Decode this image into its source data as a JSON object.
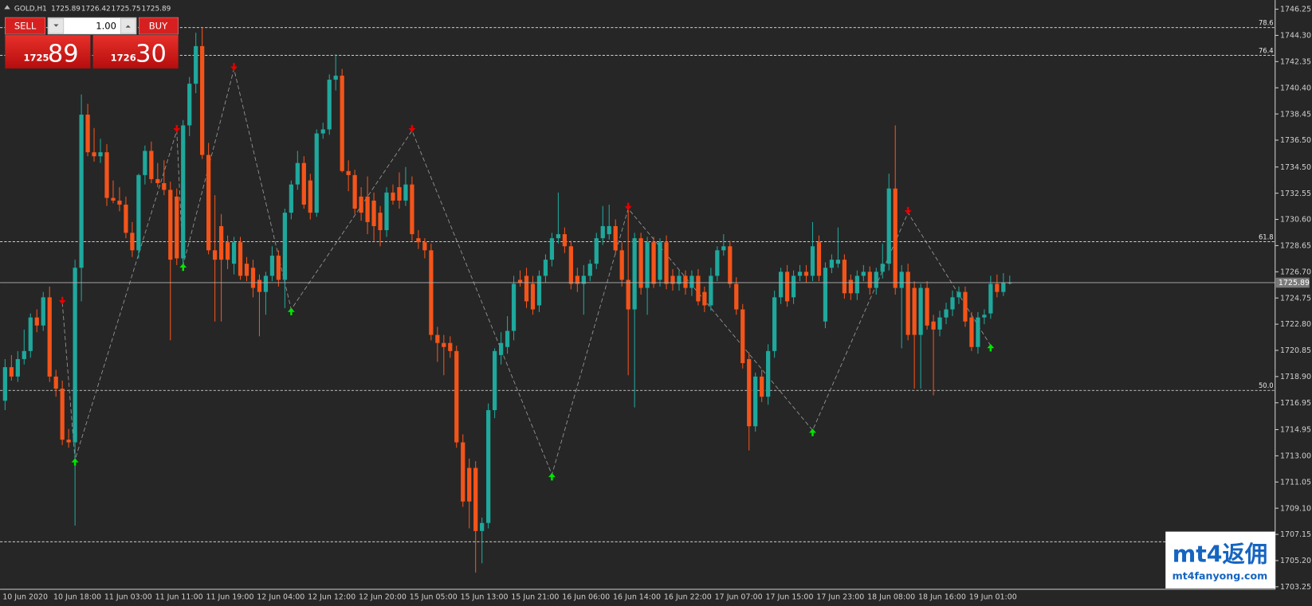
{
  "chart_data": {
    "type": "candlestick",
    "symbol": "GOLD,H1",
    "up_color": "#1fa89c",
    "down_color": "#f4541a",
    "ylim": [
      1703.25,
      1746.25
    ],
    "yticks": [
      1746.25,
      {
        "value": 1744.3,
        "label": "1744.30"
      },
      1742.35,
      {
        "value": 1740.4,
        "label": "1740.40"
      },
      1738.45,
      {
        "value": 1736.5,
        "label": "1736.50"
      },
      {
        "value": 1734.5,
        "label": "1734.50"
      },
      1732.55,
      {
        "value": 1730.6,
        "label": "1730.60"
      },
      1728.65,
      {
        "value": 1726.7,
        "label": "1726.70"
      },
      1724.75,
      {
        "value": 1722.8,
        "label": "1722.80"
      },
      1720.85,
      {
        "value": 1718.9,
        "label": "1718.90"
      },
      1716.95,
      1714.95,
      {
        "value": 1713,
        "label": "1713.00"
      },
      1711.05,
      {
        "value": 1709.1,
        "label": "1709.10"
      },
      1707.15,
      {
        "value": 1705.2,
        "label": "1705.20"
      },
      1703.25
    ],
    "levels": [
      {
        "label": "78.6",
        "price": 1744.88
      },
      {
        "label": "76.4",
        "price": 1742.82
      },
      {
        "label": "61.8",
        "price": 1728.94
      },
      {
        "label": "50.0",
        "price": 1717.87
      },
      {
        "price": 1706.6
      }
    ],
    "signal_colors": {
      "up": "#00e600",
      "down": "#e60000"
    },
    "signals": [
      {
        "index": 9,
        "price": 1724.4,
        "direction": "down"
      },
      {
        "index": 11,
        "price": 1712.7,
        "direction": "up"
      },
      {
        "index": 27,
        "price": 1737.2,
        "direction": "down"
      },
      {
        "index": 28,
        "price": 1727.2,
        "direction": "up"
      },
      {
        "index": 36,
        "price": 1741.8,
        "direction": "down"
      },
      {
        "index": 45,
        "price": 1723.9,
        "direction": "up"
      },
      {
        "index": 64,
        "price": 1737.2,
        "direction": "down"
      },
      {
        "index": 86,
        "price": 1711.6,
        "direction": "up"
      },
      {
        "index": 98,
        "price": 1731.4,
        "direction": "down"
      },
      {
        "index": 127,
        "price": 1714.9,
        "direction": "up"
      },
      {
        "index": 142,
        "price": 1731.1,
        "direction": "down"
      },
      {
        "index": 155,
        "price": 1721.2,
        "direction": "up"
      }
    ],
    "categories": [
      "10 Jun 2020",
      null,
      null,
      null,
      null,
      null,
      null,
      null,
      "10 Jun 18:00",
      null,
      null,
      null,
      null,
      null,
      null,
      null,
      "11 Jun 03:00",
      null,
      null,
      null,
      null,
      null,
      null,
      null,
      "11 Jun 11:00",
      null,
      null,
      null,
      null,
      null,
      null,
      null,
      "11 Jun 19:00",
      null,
      null,
      null,
      null,
      null,
      null,
      null,
      "12 Jun 04:00",
      null,
      null,
      null,
      null,
      null,
      null,
      null,
      "12 Jun 12:00",
      null,
      null,
      null,
      null,
      null,
      null,
      null,
      "12 Jun 20:00",
      null,
      null,
      null,
      null,
      null,
      null,
      null,
      "15 Jun 05:00",
      null,
      null,
      null,
      null,
      null,
      null,
      null,
      "15 Jun 13:00",
      null,
      null,
      null,
      null,
      null,
      null,
      null,
      "15 Jun 21:00",
      null,
      null,
      null,
      null,
      null,
      null,
      null,
      "16 Jun 06:00",
      null,
      null,
      null,
      null,
      null,
      null,
      null,
      "16 Jun 14:00",
      null,
      null,
      null,
      null,
      null,
      null,
      null,
      "16 Jun 22:00",
      null,
      null,
      null,
      null,
      null,
      null,
      null,
      "17 Jun 07:00",
      null,
      null,
      null,
      null,
      null,
      null,
      null,
      "17 Jun 15:00",
      null,
      null,
      null,
      null,
      null,
      null,
      null,
      "17 Jun 23:00",
      null,
      null,
      null,
      null,
      null,
      null,
      null,
      "18 Jun 08:00",
      null,
      null,
      null,
      null,
      null,
      null,
      null,
      "18 Jun 16:00",
      null,
      null,
      null,
      null,
      null,
      null,
      null,
      "19 Jun 01:00",
      null,
      null,
      null,
      null,
      null,
      null
    ],
    "candles": [
      [
        1717.1,
        1720.2,
        1716.4,
        1719.6
      ],
      [
        1719.6,
        1720.5,
        1718.6,
        1718.9
      ],
      [
        1718.9,
        1720.8,
        1718.5,
        1720.2
      ],
      [
        1720.2,
        1722.4,
        1719.8,
        1720.8
      ],
      [
        1720.8,
        1723.6,
        1720.3,
        1723.3
      ],
      [
        1723.3,
        1723.9,
        1722.2,
        1722.7
      ],
      [
        1722.7,
        1725.2,
        1722.3,
        1724.8
      ],
      [
        1724.8,
        1725.6,
        1718.5,
        1718.9
      ],
      [
        1718.9,
        1719.4,
        1717.4,
        1718.0
      ],
      [
        1718.0,
        1718.6,
        1713.8,
        1714.2
      ],
      [
        1714.2,
        1715.0,
        1713.6,
        1714.0
      ],
      [
        1714.0,
        1727.6,
        1707.8,
        1727.0
      ],
      [
        1727.0,
        1739.9,
        1724.5,
        1738.4
      ],
      [
        1738.4,
        1739.2,
        1735.3,
        1735.6
      ],
      [
        1735.6,
        1737.4,
        1734.9,
        1735.3
      ],
      [
        1735.3,
        1736.6,
        1734.8,
        1735.6
      ],
      [
        1735.6,
        1736.2,
        1731.6,
        1732.2
      ],
      [
        1732.2,
        1733.5,
        1731.8,
        1732.0
      ],
      [
        1732.0,
        1733.0,
        1731.2,
        1731.7
      ],
      [
        1731.7,
        1732.3,
        1729.2,
        1729.6
      ],
      [
        1729.6,
        1730.4,
        1727.8,
        1728.3
      ],
      [
        1728.3,
        1734.0,
        1727.7,
        1733.9
      ],
      [
        1733.9,
        1736.1,
        1733.2,
        1735.7
      ],
      [
        1735.7,
        1736.4,
        1733.3,
        1733.6
      ],
      [
        1733.6,
        1734.8,
        1733.0,
        1733.3
      ],
      [
        1733.3,
        1735.0,
        1732.4,
        1732.8
      ],
      [
        1732.8,
        1733.4,
        1721.6,
        1727.6
      ],
      [
        1732.3,
        1732.9,
        1727.2,
        1727.7
      ],
      [
        1727.7,
        1738.0,
        1727.0,
        1737.6
      ],
      [
        1737.6,
        1741.2,
        1736.8,
        1740.7
      ],
      [
        1740.7,
        1744.5,
        1740.0,
        1743.5
      ],
      [
        1743.5,
        1744.9,
        1735.1,
        1735.4
      ],
      [
        1735.4,
        1736.3,
        1728.0,
        1728.3
      ],
      [
        1728.3,
        1732.4,
        1723.0,
        1727.6
      ],
      [
        1730.1,
        1731.0,
        1723.0,
        1727.6
      ],
      [
        1728.9,
        1729.4,
        1726.9,
        1727.6
      ],
      [
        1727.3,
        1729.3,
        1726.5,
        1728.9
      ],
      [
        1728.9,
        1729.3,
        1726.1,
        1726.4
      ],
      [
        1727.3,
        1727.8,
        1726.0,
        1726.4
      ],
      [
        1727.0,
        1727.6,
        1724.8,
        1725.5
      ],
      [
        1726.1,
        1726.5,
        1721.9,
        1725.2
      ],
      [
        1725.2,
        1726.7,
        1723.5,
        1726.4
      ],
      [
        1726.4,
        1728.6,
        1726.0,
        1727.9
      ],
      [
        1727.9,
        1728.3,
        1725.6,
        1726.1
      ],
      [
        1726.1,
        1731.4,
        1724.0,
        1731.1
      ],
      [
        1731.1,
        1733.5,
        1730.6,
        1733.2
      ],
      [
        1733.2,
        1735.7,
        1732.8,
        1734.8
      ],
      [
        1734.8,
        1735.3,
        1731.4,
        1731.7
      ],
      [
        1733.5,
        1734.0,
        1730.6,
        1731.1
      ],
      [
        1731.1,
        1737.3,
        1730.8,
        1737.0
      ],
      [
        1737.0,
        1737.8,
        1736.6,
        1737.3
      ],
      [
        1737.3,
        1741.4,
        1736.9,
        1741.0
      ],
      [
        1741.0,
        1742.9,
        1740.2,
        1741.3
      ],
      [
        1741.3,
        1741.8,
        1734.1,
        1734.2
      ],
      [
        1734.2,
        1735.0,
        1732.7,
        1733.9
      ],
      [
        1733.9,
        1734.3,
        1731.0,
        1731.4
      ],
      [
        1732.3,
        1733.0,
        1730.5,
        1731.1
      ],
      [
        1732.3,
        1733.8,
        1729.5,
        1730.4
      ],
      [
        1732.0,
        1732.6,
        1729.0,
        1730.1
      ],
      [
        1731.1,
        1731.6,
        1728.6,
        1729.8
      ],
      [
        1729.8,
        1733.0,
        1729.3,
        1732.6
      ],
      [
        1732.6,
        1733.2,
        1731.7,
        1732.0
      ],
      [
        1733.0,
        1734.1,
        1731.4,
        1732.0
      ],
      [
        1732.0,
        1734.5,
        1731.6,
        1733.2
      ],
      [
        1733.2,
        1733.8,
        1729.0,
        1729.5
      ],
      [
        1729.2,
        1729.8,
        1728.4,
        1728.9
      ],
      [
        1728.9,
        1729.2,
        1727.7,
        1728.3
      ],
      [
        1728.3,
        1728.8,
        1721.6,
        1722.0
      ],
      [
        1722.0,
        1722.6,
        1720.0,
        1721.4
      ],
      [
        1721.4,
        1722.0,
        1719.0,
        1721.1
      ],
      [
        1721.4,
        1721.9,
        1720.3,
        1720.8
      ],
      [
        1720.8,
        1721.2,
        1713.6,
        1714.0
      ],
      [
        1714.0,
        1714.6,
        1709.2,
        1709.6
      ],
      [
        1712.1,
        1712.8,
        1707.6,
        1709.6
      ],
      [
        1712.1,
        1712.6,
        1704.3,
        1707.4
      ],
      [
        1707.4,
        1708.4,
        1705.0,
        1708.0
      ],
      [
        1708.0,
        1716.9,
        1707.6,
        1716.4
      ],
      [
        1716.4,
        1721.0,
        1715.8,
        1720.8
      ],
      [
        1720.5,
        1722.2,
        1719.8,
        1721.4
      ],
      [
        1721.1,
        1723.4,
        1720.6,
        1722.3
      ],
      [
        1722.3,
        1726.4,
        1721.6,
        1725.8
      ],
      [
        1726.1,
        1726.8,
        1725.6,
        1725.9
      ],
      [
        1726.4,
        1727.0,
        1724.0,
        1724.5
      ],
      [
        1725.8,
        1726.4,
        1723.5,
        1723.9
      ],
      [
        1724.2,
        1726.8,
        1723.7,
        1726.4
      ],
      [
        1726.4,
        1728.0,
        1725.9,
        1727.6
      ],
      [
        1727.6,
        1729.6,
        1727.1,
        1729.2
      ],
      [
        1729.2,
        1732.6,
        1728.8,
        1729.5
      ],
      [
        1729.5,
        1730.0,
        1728.1,
        1728.6
      ],
      [
        1728.6,
        1729.0,
        1725.4,
        1725.8
      ],
      [
        1726.4,
        1727.0,
        1725.2,
        1725.8
      ],
      [
        1725.8,
        1727.2,
        1723.5,
        1726.4
      ],
      [
        1726.4,
        1727.6,
        1726.0,
        1727.3
      ],
      [
        1727.3,
        1729.6,
        1726.9,
        1729.2
      ],
      [
        1729.2,
        1731.6,
        1728.7,
        1730.1
      ],
      [
        1729.5,
        1731.7,
        1729.1,
        1730.1
      ],
      [
        1730.1,
        1730.6,
        1728.0,
        1728.3
      ],
      [
        1728.3,
        1728.9,
        1725.6,
        1726.1
      ],
      [
        1726.1,
        1731.7,
        1719.0,
        1723.9
      ],
      [
        1723.9,
        1729.6,
        1716.6,
        1729.2
      ],
      [
        1729.2,
        1729.6,
        1725.0,
        1725.5
      ],
      [
        1725.5,
        1729.3,
        1723.5,
        1728.9
      ],
      [
        1728.9,
        1729.3,
        1725.5,
        1725.8
      ],
      [
        1726.1,
        1729.2,
        1725.6,
        1728.9
      ],
      [
        1728.9,
        1729.4,
        1725.4,
        1725.8
      ],
      [
        1726.4,
        1726.9,
        1725.3,
        1725.8
      ],
      [
        1725.8,
        1726.8,
        1725.3,
        1726.4
      ],
      [
        1726.4,
        1726.8,
        1725.0,
        1725.5
      ],
      [
        1725.5,
        1726.8,
        1724.9,
        1726.4
      ],
      [
        1726.4,
        1726.9,
        1724.2,
        1724.5
      ],
      [
        1725.2,
        1725.6,
        1723.7,
        1724.2
      ],
      [
        1724.2,
        1727.0,
        1723.8,
        1726.4
      ],
      [
        1726.4,
        1728.6,
        1726.0,
        1728.3
      ],
      [
        1728.3,
        1729.5,
        1727.9,
        1728.6
      ],
      [
        1728.6,
        1729.0,
        1725.5,
        1725.8
      ],
      [
        1725.8,
        1726.3,
        1723.5,
        1723.9
      ],
      [
        1723.9,
        1724.3,
        1719.5,
        1719.9
      ],
      [
        1720.2,
        1720.7,
        1713.4,
        1715.2
      ],
      [
        1715.2,
        1719.2,
        1714.8,
        1718.9
      ],
      [
        1718.9,
        1719.4,
        1717.0,
        1717.4
      ],
      [
        1717.4,
        1721.3,
        1716.8,
        1720.8
      ],
      [
        1720.8,
        1725.3,
        1720.3,
        1724.8
      ],
      [
        1724.8,
        1727.0,
        1724.3,
        1726.7
      ],
      [
        1726.7,
        1727.2,
        1724.1,
        1724.5
      ],
      [
        1724.8,
        1726.8,
        1724.3,
        1726.4
      ],
      [
        1726.4,
        1727.2,
        1726.0,
        1726.7
      ],
      [
        1726.7,
        1727.2,
        1725.9,
        1726.4
      ],
      [
        1726.4,
        1730.4,
        1726.0,
        1728.6
      ],
      [
        1728.9,
        1729.4,
        1726.0,
        1726.4
      ],
      [
        1723.0,
        1727.4,
        1722.5,
        1727.0
      ],
      [
        1727.0,
        1728.0,
        1726.6,
        1727.6
      ],
      [
        1727.3,
        1730.0,
        1727.0,
        1727.6
      ],
      [
        1727.6,
        1728.0,
        1724.7,
        1725.1
      ],
      [
        1726.1,
        1726.5,
        1724.6,
        1725.1
      ],
      [
        1725.1,
        1726.8,
        1724.6,
        1726.4
      ],
      [
        1726.4,
        1727.2,
        1726.0,
        1726.7
      ],
      [
        1726.7,
        1727.1,
        1725.0,
        1725.5
      ],
      [
        1725.5,
        1727.0,
        1725.0,
        1726.7
      ],
      [
        1726.7,
        1728.8,
        1726.2,
        1727.3
      ],
      [
        1727.3,
        1734.0,
        1726.8,
        1732.9
      ],
      [
        1732.9,
        1737.6,
        1725.0,
        1725.5
      ],
      [
        1725.5,
        1727.2,
        1721.0,
        1726.7
      ],
      [
        1726.7,
        1727.3,
        1721.6,
        1722.0
      ],
      [
        1725.5,
        1726.0,
        1718.0,
        1722.0
      ],
      [
        1722.0,
        1725.8,
        1718.0,
        1725.5
      ],
      [
        1725.5,
        1726.0,
        1722.4,
        1722.7
      ],
      [
        1723.0,
        1723.5,
        1717.5,
        1722.4
      ],
      [
        1722.4,
        1723.8,
        1721.9,
        1723.3
      ],
      [
        1723.3,
        1724.4,
        1722.8,
        1723.9
      ],
      [
        1723.9,
        1725.3,
        1723.4,
        1724.8
      ],
      [
        1724.8,
        1725.6,
        1724.3,
        1725.2
      ],
      [
        1725.2,
        1725.6,
        1722.6,
        1723.0
      ],
      [
        1723.3,
        1723.7,
        1720.8,
        1721.1
      ],
      [
        1721.1,
        1723.7,
        1720.6,
        1723.3
      ],
      [
        1723.3,
        1723.9,
        1722.8,
        1723.5
      ],
      [
        1723.6,
        1726.4,
        1723.2,
        1725.8
      ],
      [
        1725.8,
        1726.5,
        1724.8,
        1725.2
      ],
      [
        1725.2,
        1726.6,
        1724.9,
        1725.9
      ],
      [
        1725.89,
        1726.42,
        1725.75,
        1725.89
      ]
    ]
  },
  "trade_panel": {
    "sell": "SELL",
    "buy": "BUY",
    "lot": "1.00",
    "bid": {
      "big": "1725",
      "small": "89"
    },
    "ask": {
      "big": "1726",
      "small": "30"
    }
  },
  "watermark": {
    "logo": "mt4返佣",
    "url": "mt4fanyong.com"
  }
}
